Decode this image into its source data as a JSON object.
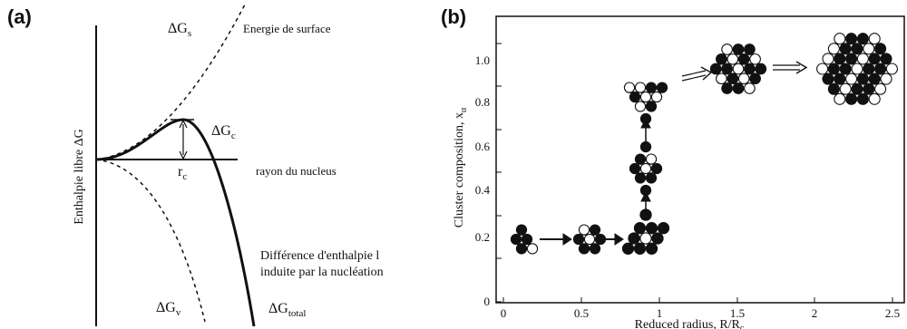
{
  "panel_a": {
    "label": "(a)",
    "ylabel": "Enthalpie libre ΔG",
    "surface_label": "Energie de surface",
    "gs_label": "ΔG",
    "gs_sub": "s",
    "gc_label": "ΔG",
    "gc_sub": "c",
    "rc_label": "r",
    "rc_sub": "c",
    "xaxis_label": "rayon du nucleus",
    "diff_line1": "Différence d'enthalpie l",
    "diff_line2": "induite par la nucléation",
    "gv_label": "ΔG",
    "gv_sub": "v",
    "gtotal_label": "ΔG",
    "gtotal_sub": "total"
  },
  "panel_b": {
    "label": "(b)",
    "ylabel": "Cluster composition, x",
    "ylabel_sub": "α",
    "xlabel": "Reduced radius, R/R",
    "xlabel_sub": "c",
    "x_ticks": [
      "0",
      "0.5",
      "1",
      "1.5",
      "2",
      "2.5"
    ],
    "y_ticks": [
      "0",
      "0.2",
      "0.4",
      "0.6",
      "0.8",
      "1.0"
    ]
  },
  "colors": {
    "ink": "#111111",
    "background": "#ffffff"
  }
}
